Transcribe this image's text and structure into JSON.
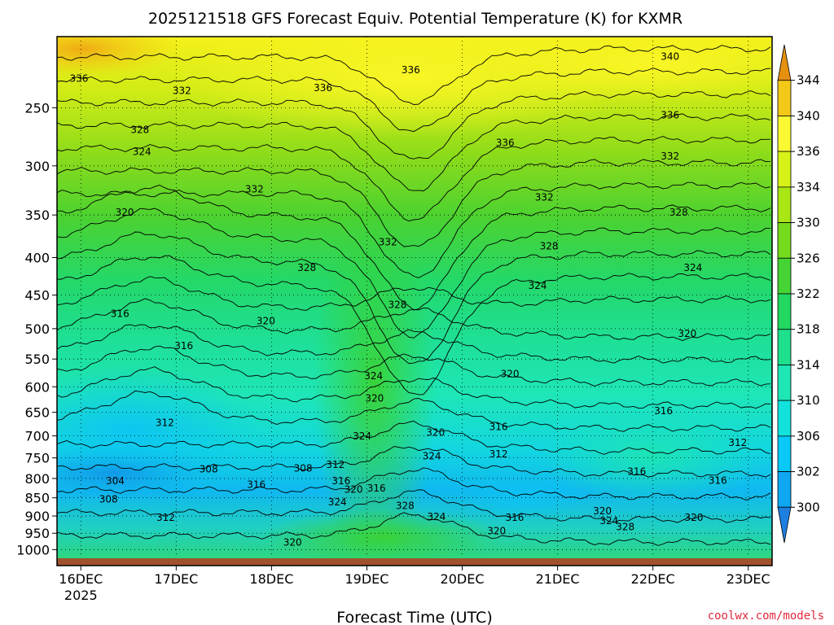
{
  "chart_data": {
    "type": "heatmap",
    "title": "2025121518 GFS Forecast Equiv. Potential Temperature (K) for KXMR",
    "xlabel": "Forecast Time (UTC)",
    "ylabel": "",
    "credit": "coolwx.com/models",
    "x_ticks": [
      {
        "label": "16DEC",
        "sub": "2025",
        "t": 0
      },
      {
        "label": "17DEC",
        "sub": "",
        "t": 1
      },
      {
        "label": "18DEC",
        "sub": "",
        "t": 2
      },
      {
        "label": "19DEC",
        "sub": "",
        "t": 3
      },
      {
        "label": "20DEC",
        "sub": "",
        "t": 4
      },
      {
        "label": "21DEC",
        "sub": "",
        "t": 5
      },
      {
        "label": "22DEC",
        "sub": "",
        "t": 6
      },
      {
        "label": "23DEC",
        "sub": "",
        "t": 7
      }
    ],
    "x_range_days": [
      -0.25,
      7.25
    ],
    "y_ticks": [
      250,
      300,
      350,
      400,
      450,
      500,
      550,
      600,
      650,
      700,
      750,
      800,
      850,
      900,
      950,
      1000
    ],
    "y_range_hpa": [
      200,
      1025
    ],
    "y_scale": "log-pressure",
    "colorbar": {
      "levels": [
        300,
        302,
        306,
        310,
        314,
        318,
        322,
        326,
        330,
        334,
        336,
        340,
        344
      ],
      "labels": [
        "300",
        "302",
        "306",
        "310",
        "314",
        "318",
        "322",
        "326",
        "330",
        "334",
        "336",
        "340",
        "344"
      ],
      "colors": [
        "#1d7fe0",
        "#0fa6f2",
        "#08c9f7",
        "#12e2dc",
        "#1ee6b4",
        "#1ee08c",
        "#22d860",
        "#46d434",
        "#74dc1c",
        "#a8e614",
        "#d6f218",
        "#fbfa32",
        "#f4c818",
        "#e49010"
      ]
    },
    "contour_labels": [
      {
        "v": "336",
        "t": -0.02,
        "p": 228
      },
      {
        "v": "332",
        "t": 1.06,
        "p": 237
      },
      {
        "v": "328",
        "t": 0.62,
        "p": 268
      },
      {
        "v": "324",
        "t": 0.64,
        "p": 287
      },
      {
        "v": "320",
        "t": 0.46,
        "p": 347
      },
      {
        "v": "316",
        "t": 0.41,
        "p": 477
      },
      {
        "v": "316",
        "t": 1.08,
        "p": 528
      },
      {
        "v": "312",
        "t": 0.88,
        "p": 672
      },
      {
        "v": "308",
        "t": 1.34,
        "p": 777
      },
      {
        "v": "304",
        "t": 0.36,
        "p": 806
      },
      {
        "v": "308",
        "t": 0.29,
        "p": 854
      },
      {
        "v": "312",
        "t": 0.89,
        "p": 905
      },
      {
        "v": "316",
        "t": 1.84,
        "p": 816
      },
      {
        "v": "308",
        "t": 2.33,
        "p": 775
      },
      {
        "v": "312",
        "t": 2.67,
        "p": 766
      },
      {
        "v": "316",
        "t": 2.73,
        "p": 806
      },
      {
        "v": "320",
        "t": 2.86,
        "p": 828
      },
      {
        "v": "324",
        "t": 2.69,
        "p": 862
      },
      {
        "v": "316",
        "t": 3.1,
        "p": 825
      },
      {
        "v": "328",
        "t": 3.4,
        "p": 872
      },
      {
        "v": "324",
        "t": 3.73,
        "p": 902
      },
      {
        "v": "320",
        "t": 2.22,
        "p": 978
      },
      {
        "v": "332",
        "t": 1.82,
        "p": 323
      },
      {
        "v": "336",
        "t": 2.54,
        "p": 235
      },
      {
        "v": "336",
        "t": 3.46,
        "p": 222
      },
      {
        "v": "332",
        "t": 3.22,
        "p": 381
      },
      {
        "v": "328",
        "t": 2.37,
        "p": 413
      },
      {
        "v": "328",
        "t": 3.32,
        "p": 464
      },
      {
        "v": "320",
        "t": 1.94,
        "p": 488
      },
      {
        "v": "324",
        "t": 3.07,
        "p": 580
      },
      {
        "v": "320",
        "t": 3.08,
        "p": 622
      },
      {
        "v": "324",
        "t": 2.95,
        "p": 701
      },
      {
        "v": "320",
        "t": 3.72,
        "p": 693
      },
      {
        "v": "324",
        "t": 3.68,
        "p": 746
      },
      {
        "v": "336",
        "t": 4.45,
        "p": 279
      },
      {
        "v": "332",
        "t": 4.86,
        "p": 331
      },
      {
        "v": "328",
        "t": 4.91,
        "p": 386
      },
      {
        "v": "324",
        "t": 4.79,
        "p": 437
      },
      {
        "v": "320",
        "t": 4.5,
        "p": 576
      },
      {
        "v": "316",
        "t": 4.38,
        "p": 680
      },
      {
        "v": "312",
        "t": 4.38,
        "p": 741
      },
      {
        "v": "316",
        "t": 4.55,
        "p": 904
      },
      {
        "v": "320",
        "t": 4.36,
        "p": 943
      },
      {
        "v": "320",
        "t": 5.47,
        "p": 886
      },
      {
        "v": "324",
        "t": 5.54,
        "p": 914
      },
      {
        "v": "328",
        "t": 5.71,
        "p": 931
      },
      {
        "v": "340",
        "t": 6.18,
        "p": 213
      },
      {
        "v": "336",
        "t": 6.18,
        "p": 256
      },
      {
        "v": "332",
        "t": 6.18,
        "p": 291
      },
      {
        "v": "328",
        "t": 6.27,
        "p": 347
      },
      {
        "v": "324",
        "t": 6.42,
        "p": 413
      },
      {
        "v": "320",
        "t": 6.36,
        "p": 508
      },
      {
        "v": "316",
        "t": 6.11,
        "p": 647
      },
      {
        "v": "316",
        "t": 5.83,
        "p": 783
      },
      {
        "v": "320",
        "t": 6.43,
        "p": 905
      },
      {
        "v": "312",
        "t": 6.89,
        "p": 715
      },
      {
        "v": "316",
        "t": 6.68,
        "p": 805
      }
    ]
  }
}
